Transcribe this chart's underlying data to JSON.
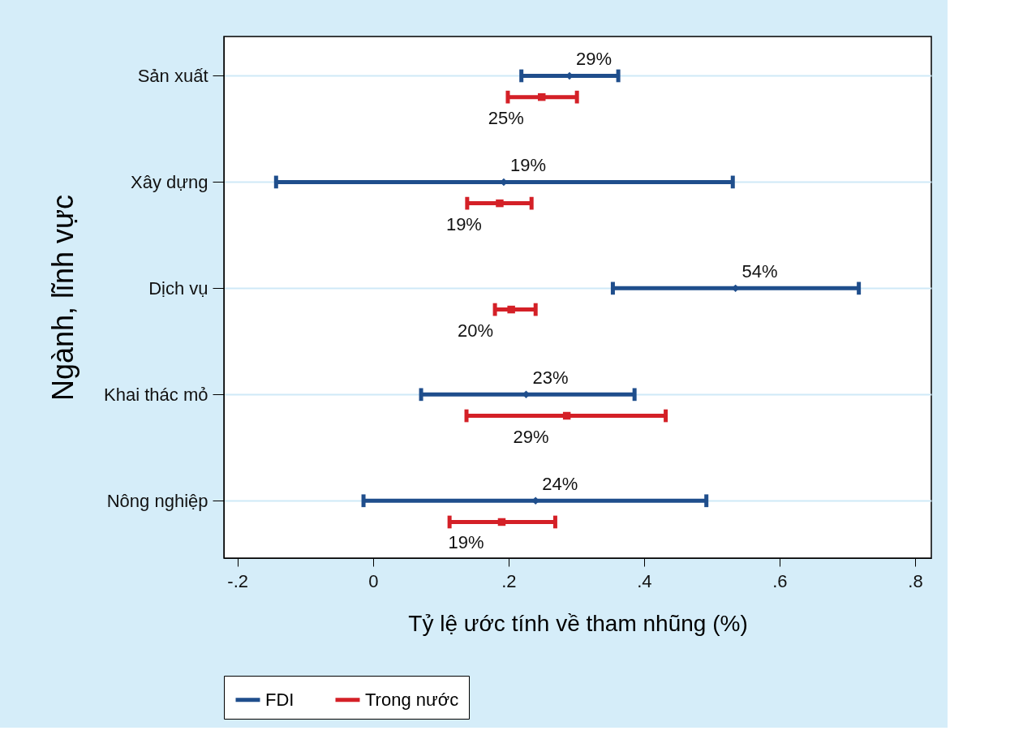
{
  "chart_data": {
    "type": "scatter",
    "orientation": "horizontal",
    "xlabel": "Tỷ lệ ước tính về tham nhũng (%)",
    "ylabel": "Ngành, lĩnh vực",
    "categories": [
      "Sản xuất",
      "Xây dựng",
      "Dịch vụ",
      "Khai thác mỏ",
      "Nông nghiệp"
    ],
    "series": [
      {
        "name": "FDI",
        "color": "#1f4e8c",
        "marker": "diamond",
        "values": [
          0.29,
          0.193,
          0.535,
          0.226,
          0.24
        ],
        "errors": [
          [
            0.219,
            0.362
          ],
          [
            -0.143,
            0.531
          ],
          [
            0.354,
            0.717
          ],
          [
            0.071,
            0.386
          ],
          [
            -0.014,
            0.492
          ]
        ],
        "value_labels": [
          "29%",
          "19%",
          "54%",
          "23%",
          "24%"
        ]
      },
      {
        "name": "Trong nước",
        "color": "#d42027",
        "marker": "square",
        "values": [
          0.249,
          0.187,
          0.204,
          0.286,
          0.19
        ],
        "errors": [
          [
            0.199,
            0.301
          ],
          [
            0.139,
            0.234
          ],
          [
            0.18,
            0.24
          ],
          [
            0.138,
            0.432
          ],
          [
            0.113,
            0.269
          ]
        ],
        "value_labels": [
          "25%",
          "19%",
          "20%",
          "29%",
          "19%"
        ]
      }
    ],
    "xlim": [
      -0.22,
      0.824
    ],
    "xticks": [
      {
        "value": -0.2,
        "label": "-.2"
      },
      0,
      {
        "value": 0.2,
        "label": ".2"
      },
      {
        "value": 0.4,
        "label": ".4"
      },
      {
        "value": 0.6,
        "label": ".6"
      },
      {
        "value": 0.8,
        "label": ".8"
      }
    ],
    "grid": "y",
    "legend": "bottom"
  }
}
